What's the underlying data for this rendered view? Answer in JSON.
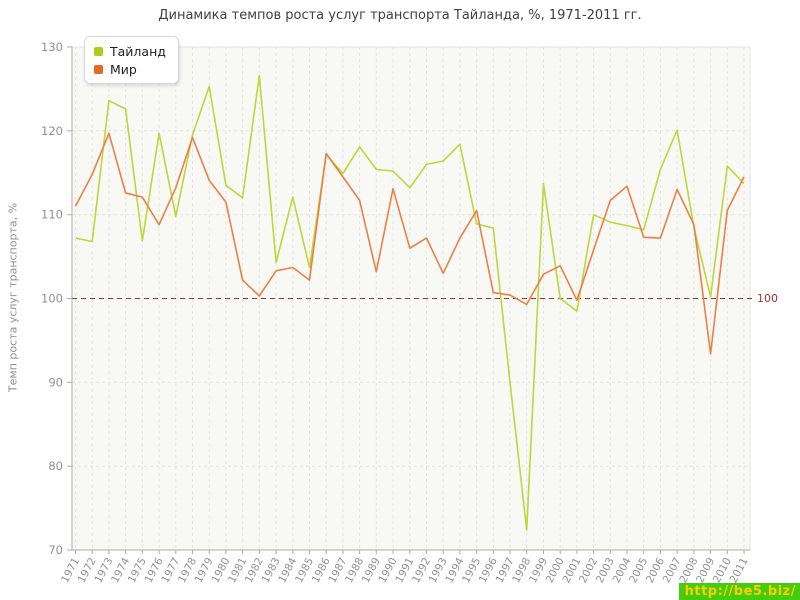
{
  "chart_data": {
    "type": "line",
    "title": "Динамика темпов роста услуг транспорта Тайланда, %, 1971-2011 гг.",
    "ylabel": "Темп роста услуг транспорта, %",
    "xlabel": "",
    "ylim": [
      70,
      130
    ],
    "yticks": [
      70,
      80,
      90,
      100,
      110,
      120,
      130
    ],
    "grid": true,
    "x_tick_rotation": -62,
    "legend_position": "top-left",
    "reference_line": {
      "value": 100,
      "label": "100",
      "color": "#993333"
    },
    "categories": [
      "1971",
      "1972",
      "1973",
      "1974",
      "1975",
      "1976",
      "1977",
      "1978",
      "1979",
      "1980",
      "1981",
      "1982",
      "1983",
      "1984",
      "1985",
      "1986",
      "1987",
      "1988",
      "1989",
      "1990",
      "1991",
      "1992",
      "1993",
      "1994",
      "1995",
      "1996",
      "1997",
      "1998",
      "1999",
      "2000",
      "2001",
      "2002",
      "2003",
      "2004",
      "2005",
      "2006",
      "2007",
      "2008",
      "2009",
      "2010",
      "2011"
    ],
    "series": [
      {
        "name": "Тайланд",
        "color": "#aecb1e",
        "line_color": "#bdd73c",
        "values": [
          107.2,
          106.8,
          123.6,
          122.6,
          106.9,
          119.7,
          109.8,
          119.5,
          125.3,
          113.5,
          112.0,
          126.6,
          104.3,
          112.1,
          103.7,
          117.2,
          114.9,
          118.1,
          115.4,
          115.2,
          113.2,
          116.0,
          116.4,
          118.4,
          108.9,
          108.4,
          90.0,
          72.4,
          113.7,
          100.0,
          98.5,
          110.0,
          109.1,
          108.7,
          108.2,
          115.4,
          120.1,
          108.5,
          100.2,
          115.8,
          113.7
        ]
      },
      {
        "name": "Мир",
        "color": "#e26b26",
        "line_color": "#ea8048",
        "values": [
          111.0,
          114.8,
          119.7,
          112.6,
          112.1,
          108.8,
          113.2,
          119.2,
          114.1,
          111.5,
          102.2,
          100.3,
          103.3,
          103.7,
          102.2,
          117.3,
          114.5,
          111.7,
          103.2,
          113.1,
          106.0,
          107.2,
          103.0,
          107.2,
          110.5,
          100.7,
          100.4,
          99.3,
          102.9,
          103.9,
          99.8,
          105.8,
          111.7,
          113.4,
          107.3,
          107.2,
          113.0,
          108.8,
          93.4,
          110.5,
          114.5
        ]
      }
    ]
  },
  "watermark": {
    "text": "http://be5.biz/",
    "bg": "#44cc11",
    "fg": "#ffcc00"
  },
  "styles": {
    "plot_bg": "#f8f8f5",
    "plot_border": "#e3e3e0",
    "grid": "#e3e3df",
    "axis": "#ababab",
    "tick_label": "#919191",
    "title_color": "#404040"
  }
}
